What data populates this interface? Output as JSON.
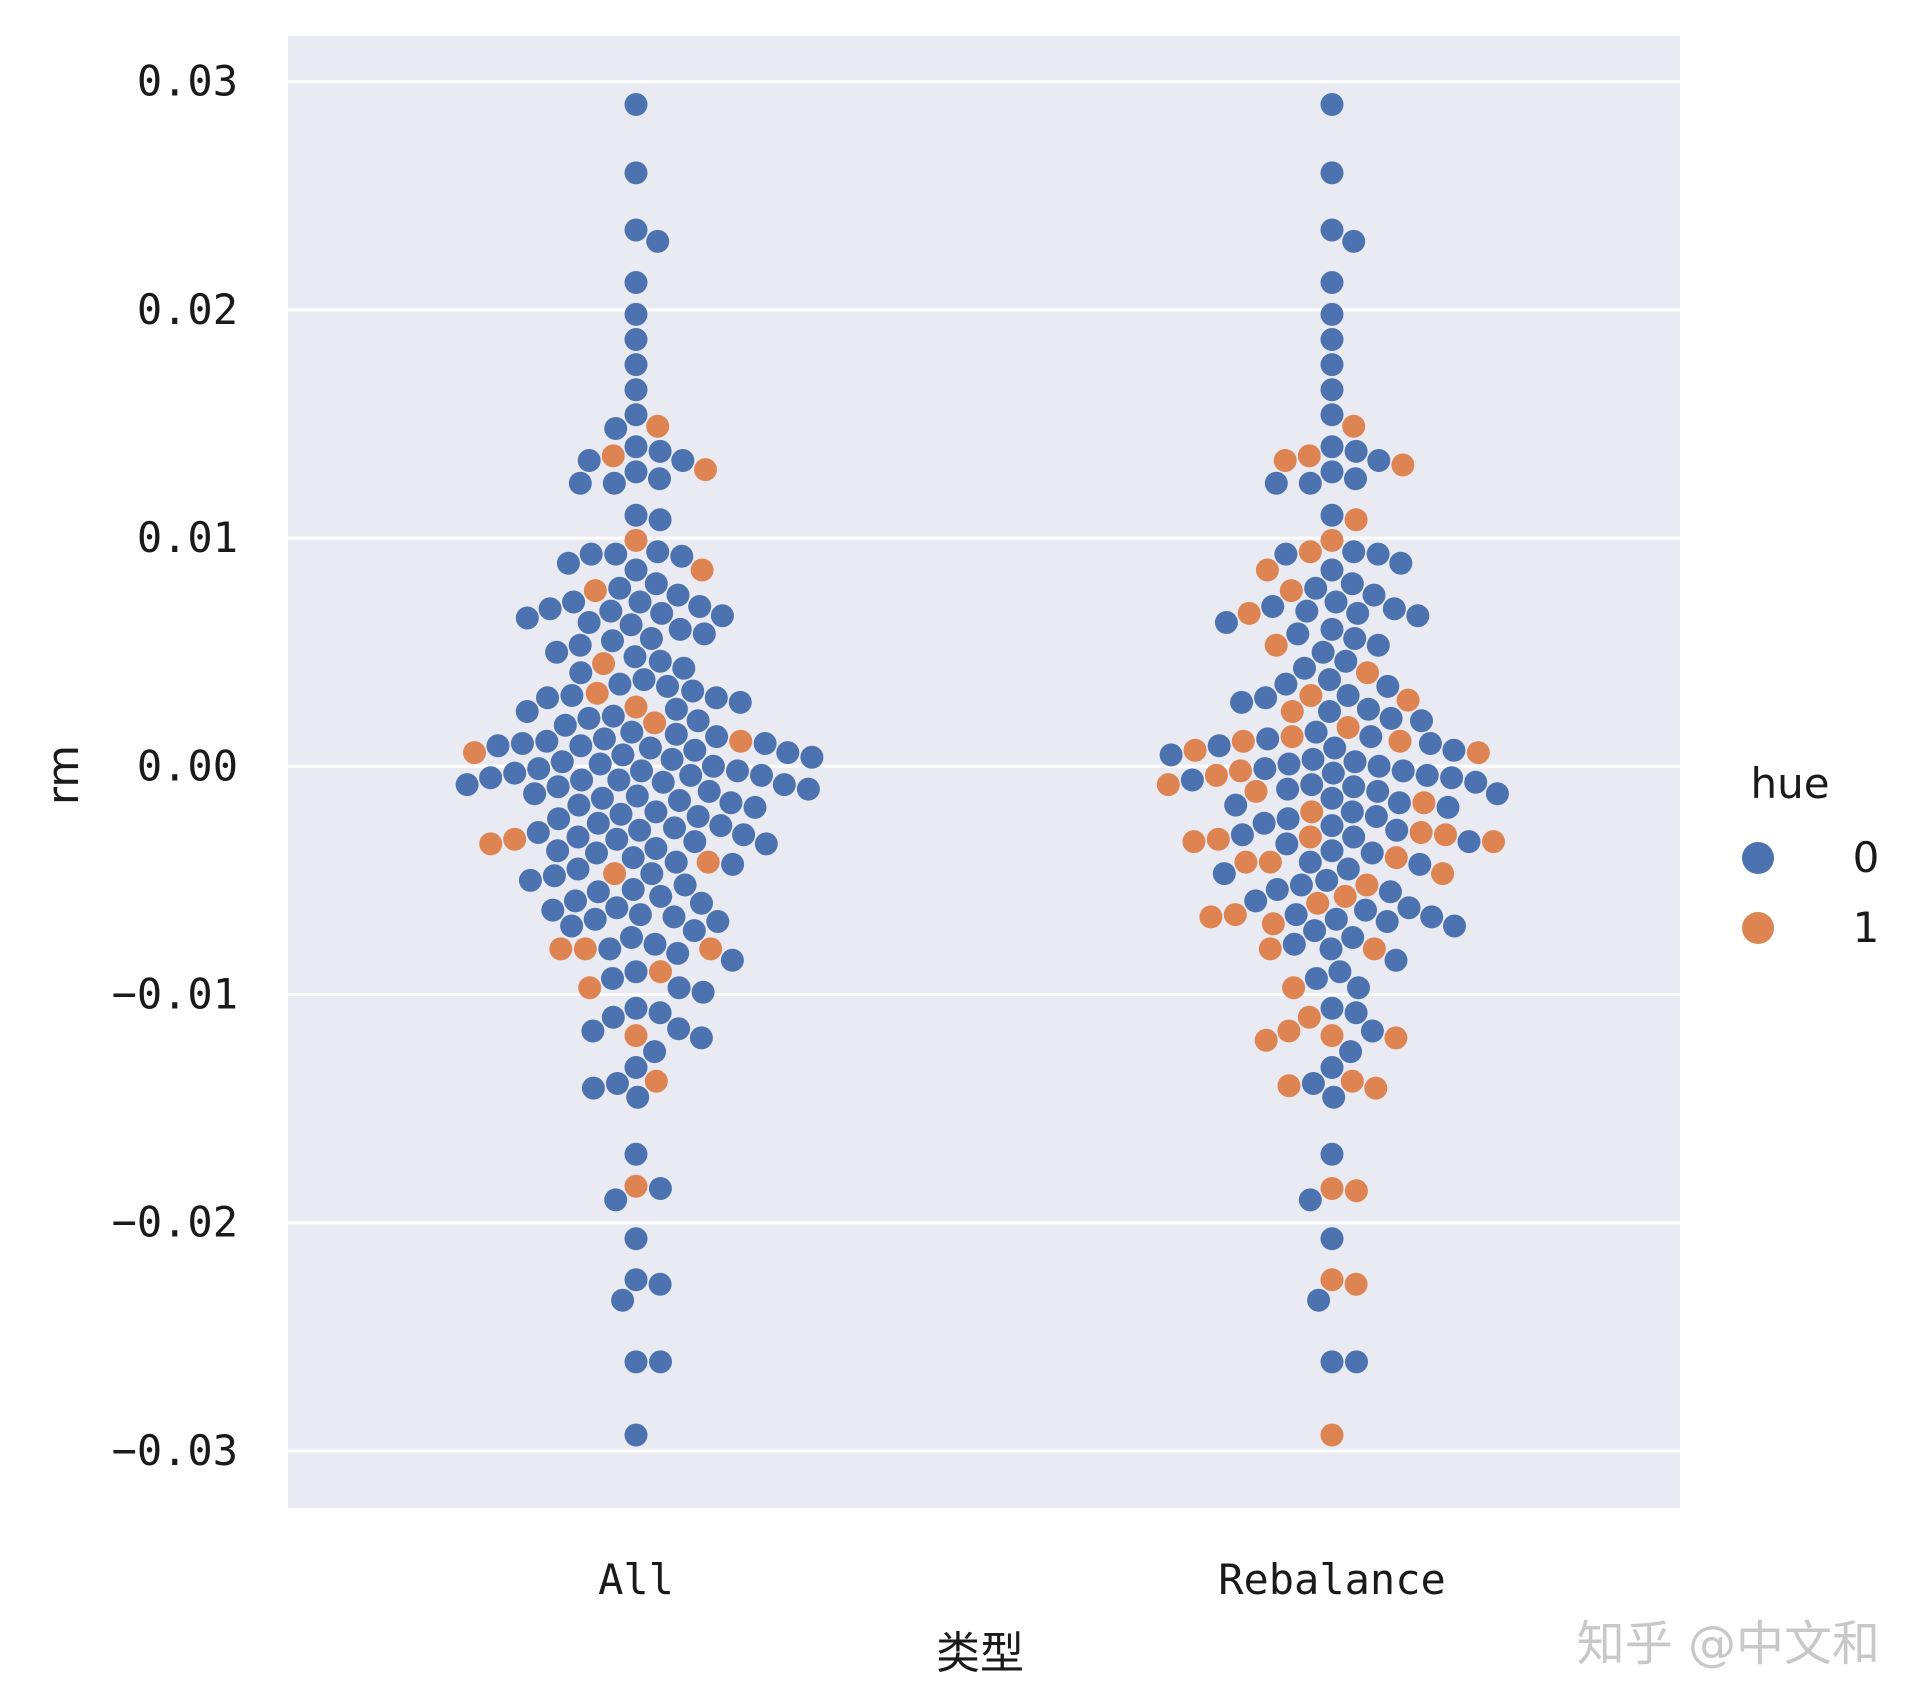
{
  "chart_data": {
    "type": "swarm",
    "title": "",
    "xlabel": "类型",
    "ylabel": "rm",
    "categories": [
      "All",
      "Rebalance"
    ],
    "ylim": [
      -0.0325,
      0.032
    ],
    "yticks": [
      0.03,
      0.02,
      0.01,
      0.0,
      -0.01,
      -0.02,
      -0.03
    ],
    "ytick_labels": [
      "0.03",
      "0.02",
      "0.01",
      "0.00",
      "−0.01",
      "−0.02",
      "−0.03"
    ],
    "grid": true,
    "legend": {
      "title": "hue",
      "placement": "right",
      "entries": [
        {
          "label": "0",
          "color": "#4c72b0"
        },
        {
          "label": "1",
          "color": "#dd8452"
        }
      ]
    },
    "colors": {
      "hue0": "#4c72b0",
      "hue1": "#dd8452",
      "background": "#eaeaf2",
      "grid": "#ffffff"
    },
    "series": [
      {
        "name": "All",
        "hue0_values": [
          0.029,
          0.026,
          0.0235,
          0.023,
          0.0212,
          0.0198,
          0.0187,
          0.0176,
          0.0165,
          0.0154,
          0.0148,
          0.014,
          0.0138,
          0.0134,
          0.0134,
          0.0129,
          0.0126,
          0.0124,
          0.0124,
          0.011,
          0.0108,
          0.0094,
          0.0093,
          0.0093,
          0.0092,
          0.0089,
          0.0086,
          0.008,
          0.0078,
          0.0075,
          0.0072,
          0.0072,
          0.007,
          0.0069,
          0.0068,
          0.0067,
          0.0066,
          0.0065,
          0.0063,
          0.0062,
          0.006,
          0.0058,
          0.0056,
          0.0055,
          0.0053,
          0.005,
          0.0048,
          0.0046,
          0.0043,
          0.0041,
          0.0038,
          0.0036,
          0.0035,
          0.0033,
          0.0031,
          0.003,
          0.003,
          0.0028,
          0.0025,
          0.0024,
          0.0022,
          0.0021,
          0.002,
          0.0018,
          0.0015,
          0.0014,
          0.0013,
          0.0012,
          0.0011,
          0.001,
          0.001,
          0.0009,
          0.0009,
          0.0008,
          0.0007,
          0.0006,
          0.0005,
          0.0004,
          0.0003,
          0.0002,
          0.0001,
          0.0,
          -0.0001,
          -0.0002,
          -0.0002,
          -0.0003,
          -0.0004,
          -0.0004,
          -0.0005,
          -0.0006,
          -0.0006,
          -0.0007,
          -0.0008,
          -0.0008,
          -0.0009,
          -0.001,
          -0.0011,
          -0.0012,
          -0.0013,
          -0.0014,
          -0.0015,
          -0.0016,
          -0.0017,
          -0.0018,
          -0.002,
          -0.0021,
          -0.0022,
          -0.0023,
          -0.0025,
          -0.0026,
          -0.0027,
          -0.0028,
          -0.0029,
          -0.003,
          -0.0031,
          -0.0032,
          -0.0033,
          -0.0034,
          -0.0036,
          -0.0037,
          -0.0038,
          -0.004,
          -0.0042,
          -0.0043,
          -0.0045,
          -0.0047,
          -0.0048,
          -0.005,
          -0.0052,
          -0.0054,
          -0.0055,
          -0.0057,
          -0.0059,
          -0.006,
          -0.0062,
          -0.0063,
          -0.0065,
          -0.0066,
          -0.0067,
          -0.0068,
          -0.007,
          -0.0072,
          -0.0075,
          -0.0078,
          -0.008,
          -0.0082,
          -0.0085,
          -0.009,
          -0.0093,
          -0.0097,
          -0.0099,
          -0.0106,
          -0.0108,
          -0.011,
          -0.0115,
          -0.0116,
          -0.0119,
          -0.0125,
          -0.0132,
          -0.0139,
          -0.0141,
          -0.0145,
          -0.017,
          -0.0185,
          -0.019,
          -0.0207,
          -0.0225,
          -0.0227,
          -0.0234,
          -0.0261,
          -0.0261,
          -0.0293
        ],
        "hue1_values": [
          0.0149,
          0.0136,
          0.013,
          0.0099,
          0.0086,
          0.0077,
          0.0045,
          0.0032,
          0.0026,
          0.0019,
          0.0011,
          0.0006,
          -0.0032,
          -0.0034,
          -0.0042,
          -0.0047,
          -0.008,
          -0.008,
          -0.008,
          -0.009,
          -0.0097,
          -0.0118,
          -0.0138,
          -0.0184
        ]
      },
      {
        "name": "Rebalance",
        "hue0_values": [
          0.029,
          0.026,
          0.0235,
          0.023,
          0.0212,
          0.0198,
          0.0187,
          0.0176,
          0.0165,
          0.0154,
          0.014,
          0.0138,
          0.0134,
          0.0129,
          0.0126,
          0.0124,
          0.0124,
          0.011,
          0.0094,
          0.0093,
          0.0093,
          0.0089,
          0.0086,
          0.008,
          0.0078,
          0.0075,
          0.0072,
          0.007,
          0.0069,
          0.0068,
          0.0067,
          0.0066,
          0.0063,
          0.006,
          0.0058,
          0.0056,
          0.0053,
          0.005,
          0.0046,
          0.0043,
          0.0038,
          0.0036,
          0.0035,
          0.0031,
          0.003,
          0.0028,
          0.0025,
          0.0024,
          0.0021,
          0.002,
          0.0015,
          0.0013,
          0.0012,
          0.001,
          0.0009,
          0.0008,
          0.0007,
          0.0005,
          0.0003,
          0.0002,
          0.0001,
          0.0,
          -0.0001,
          -0.0002,
          -0.0003,
          -0.0004,
          -0.0005,
          -0.0006,
          -0.0007,
          -0.0008,
          -0.0009,
          -0.001,
          -0.0011,
          -0.0012,
          -0.0014,
          -0.0016,
          -0.0017,
          -0.0018,
          -0.002,
          -0.0022,
          -0.0023,
          -0.0025,
          -0.0026,
          -0.0028,
          -0.003,
          -0.0031,
          -0.0033,
          -0.0034,
          -0.0037,
          -0.0038,
          -0.0042,
          -0.0043,
          -0.0045,
          -0.0047,
          -0.005,
          -0.0052,
          -0.0054,
          -0.0055,
          -0.0059,
          -0.0062,
          -0.0063,
          -0.0065,
          -0.0066,
          -0.0067,
          -0.0068,
          -0.007,
          -0.0072,
          -0.0075,
          -0.0078,
          -0.008,
          -0.0085,
          -0.009,
          -0.0093,
          -0.0097,
          -0.0106,
          -0.0108,
          -0.0116,
          -0.0125,
          -0.0132,
          -0.0139,
          -0.0145,
          -0.017,
          -0.019,
          -0.0207,
          -0.0234,
          -0.0261,
          -0.0261
        ],
        "hue1_values": [
          0.0149,
          0.0136,
          0.0134,
          0.0132,
          0.0108,
          0.0099,
          0.0094,
          0.0086,
          0.0077,
          0.0067,
          0.0053,
          0.0041,
          0.0031,
          0.0029,
          0.0024,
          0.0017,
          0.0013,
          0.0011,
          0.0011,
          0.0007,
          0.0006,
          -0.0002,
          -0.0004,
          -0.0008,
          -0.0011,
          -0.0016,
          -0.002,
          -0.0029,
          -0.003,
          -0.0031,
          -0.0032,
          -0.0033,
          -0.0033,
          -0.004,
          -0.0042,
          -0.0042,
          -0.0047,
          -0.0052,
          -0.0057,
          -0.006,
          -0.0065,
          -0.0066,
          -0.0069,
          -0.008,
          -0.008,
          -0.0097,
          -0.011,
          -0.0116,
          -0.0118,
          -0.0119,
          -0.012,
          -0.0138,
          -0.014,
          -0.0141,
          -0.0185,
          -0.0186,
          -0.0225,
          -0.0227,
          -0.0293
        ]
      }
    ]
  },
  "watermark": "知乎 @中文和"
}
